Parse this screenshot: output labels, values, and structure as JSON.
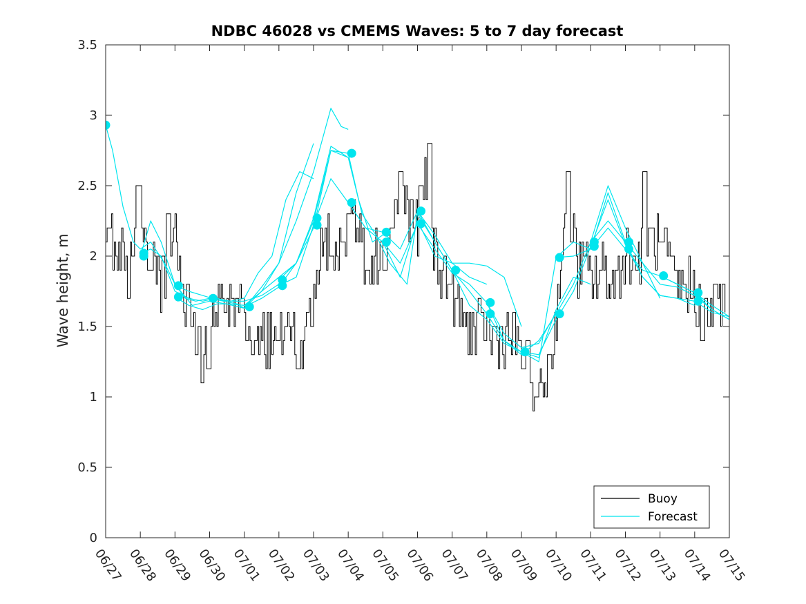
{
  "chart_data": {
    "type": "line",
    "title": "NDBC 46028 vs CMEMS Waves: 5 to 7 day forecast",
    "xlabel": "",
    "ylabel": "Wave height, m",
    "ylim": [
      0,
      3.5
    ],
    "yticks": [
      "0",
      "0.5",
      "1",
      "1.5",
      "2",
      "2.5",
      "3",
      "3.5"
    ],
    "xticks": [
      "06/27",
      "06/28",
      "06/29",
      "06/30",
      "07/01",
      "07/02",
      "07/03",
      "07/04",
      "07/05",
      "07/06",
      "07/07",
      "07/08",
      "07/09",
      "07/10",
      "07/11",
      "07/12",
      "07/13",
      "07/14",
      "07/15"
    ],
    "x_unit": "days since 06/27 00:00",
    "legend": {
      "position": "bottom-right",
      "entries": [
        "Buoy",
        "Forecast"
      ]
    },
    "colors": {
      "buoy": "#000000",
      "forecast": "#00e5ee",
      "axes": "#262626"
    },
    "buoy_anchors": [
      [
        0.0,
        2.2
      ],
      [
        0.1,
        2.35
      ],
      [
        0.2,
        2.05
      ],
      [
        0.35,
        2.1
      ],
      [
        0.5,
        2.0
      ],
      [
        0.65,
        1.85
      ],
      [
        0.8,
        2.05
      ],
      [
        0.95,
        2.45
      ],
      [
        1.05,
        2.3
      ],
      [
        1.15,
        2.1
      ],
      [
        1.3,
        1.9
      ],
      [
        1.5,
        1.8
      ],
      [
        1.7,
        1.85
      ],
      [
        1.85,
        2.15
      ],
      [
        2.0,
        2.15
      ],
      [
        2.1,
        2.05
      ],
      [
        2.25,
        1.7
      ],
      [
        2.4,
        1.65
      ],
      [
        2.55,
        1.45
      ],
      [
        2.7,
        1.35
      ],
      [
        2.85,
        1.28
      ],
      [
        3.0,
        1.4
      ],
      [
        3.1,
        1.55
      ],
      [
        3.25,
        1.6
      ],
      [
        3.4,
        1.65
      ],
      [
        3.55,
        1.6
      ],
      [
        3.7,
        1.55
      ],
      [
        3.85,
        1.6
      ],
      [
        4.0,
        1.45
      ],
      [
        4.2,
        1.4
      ],
      [
        4.4,
        1.5
      ],
      [
        4.6,
        1.4
      ],
      [
        4.8,
        1.45
      ],
      [
        5.0,
        1.4
      ],
      [
        5.2,
        1.35
      ],
      [
        5.4,
        1.45
      ],
      [
        5.55,
        1.35
      ],
      [
        5.65,
        1.25
      ],
      [
        5.75,
        1.4
      ],
      [
        5.85,
        1.55
      ],
      [
        6.0,
        1.75
      ],
      [
        6.15,
        1.95
      ],
      [
        6.3,
        2.05
      ],
      [
        6.5,
        2.15
      ],
      [
        6.7,
        2.05
      ],
      [
        6.85,
        2.1
      ],
      [
        7.0,
        2.05
      ],
      [
        7.1,
        2.35
      ],
      [
        7.2,
        2.25
      ],
      [
        7.35,
        2.1
      ],
      [
        7.5,
        2.0
      ],
      [
        7.7,
        1.95
      ],
      [
        7.9,
        2.0
      ],
      [
        8.1,
        2.05
      ],
      [
        8.3,
        2.3
      ],
      [
        8.5,
        2.4
      ],
      [
        8.7,
        2.35
      ],
      [
        8.85,
        2.25
      ],
      [
        9.0,
        2.2
      ],
      [
        9.1,
        2.4
      ],
      [
        9.2,
        2.55
      ],
      [
        9.3,
        2.35
      ],
      [
        9.4,
        2.1
      ],
      [
        9.6,
        1.95
      ],
      [
        9.8,
        1.85
      ],
      [
        10.0,
        1.75
      ],
      [
        10.15,
        1.6
      ],
      [
        10.3,
        1.55
      ],
      [
        10.5,
        1.5
      ],
      [
        10.7,
        1.45
      ],
      [
        10.9,
        1.5
      ],
      [
        11.1,
        1.45
      ],
      [
        11.3,
        1.4
      ],
      [
        11.5,
        1.45
      ],
      [
        11.7,
        1.4
      ],
      [
        11.9,
        1.35
      ],
      [
        12.1,
        1.25
      ],
      [
        12.3,
        1.15
      ],
      [
        12.45,
        1.05
      ],
      [
        12.55,
        1.05
      ],
      [
        12.7,
        1.15
      ],
      [
        12.85,
        1.3
      ],
      [
        13.0,
        1.6
      ],
      [
        13.1,
        1.9
      ],
      [
        13.2,
        2.2
      ],
      [
        13.3,
        2.35
      ],
      [
        13.4,
        2.3
      ],
      [
        13.5,
        2.1
      ],
      [
        13.6,
        1.95
      ],
      [
        13.8,
        1.9
      ],
      [
        14.0,
        1.85
      ],
      [
        14.2,
        1.85
      ],
      [
        14.4,
        1.9
      ],
      [
        14.6,
        1.8
      ],
      [
        14.8,
        1.9
      ],
      [
        15.0,
        2.05
      ],
      [
        15.2,
        1.95
      ],
      [
        15.4,
        2.0
      ],
      [
        15.6,
        2.15
      ],
      [
        15.8,
        2.1
      ],
      [
        16.0,
        2.05
      ],
      [
        16.2,
        1.95
      ],
      [
        16.4,
        1.8
      ],
      [
        16.6,
        1.75
      ],
      [
        16.8,
        1.8
      ],
      [
        17.0,
        1.75
      ],
      [
        17.2,
        1.65
      ],
      [
        17.4,
        1.6
      ],
      [
        17.6,
        1.65
      ],
      [
        17.8,
        1.7
      ],
      [
        17.9,
        1.6
      ]
    ],
    "buoy_peaks": [
      [
        0.9,
        2.5
      ],
      [
        1.8,
        2.3
      ],
      [
        2.95,
        1.2
      ],
      [
        5.55,
        1.2
      ],
      [
        7.0,
        2.3
      ],
      [
        8.5,
        2.6
      ],
      [
        9.35,
        2.8
      ],
      [
        12.4,
        1.0
      ],
      [
        13.35,
        2.6
      ],
      [
        15.55,
        2.6
      ],
      [
        17.2,
        1.4
      ]
    ],
    "forecast_series": [
      [
        [
          0.0,
          2.93
        ],
        [
          0.2,
          2.75
        ],
        [
          0.5,
          2.35
        ],
        [
          0.8,
          2.1
        ],
        [
          1.0,
          2.05
        ],
        [
          1.3,
          2.1
        ],
        [
          1.7,
          1.95
        ],
        [
          2.0,
          1.8
        ],
        [
          2.3,
          1.7
        ],
        [
          2.6,
          1.68
        ],
        [
          3.0,
          1.7
        ]
      ],
      [
        [
          1.0,
          2.02
        ],
        [
          1.3,
          2.05
        ],
        [
          1.6,
          2.0
        ],
        [
          2.0,
          1.75
        ],
        [
          2.4,
          1.7
        ],
        [
          2.8,
          1.68
        ],
        [
          3.2,
          1.7
        ],
        [
          3.6,
          1.68
        ],
        [
          4.0,
          1.68
        ],
        [
          4.5,
          1.72
        ],
        [
          5.0,
          1.8
        ]
      ],
      [
        [
          1.0,
          2.0
        ],
        [
          1.3,
          2.25
        ],
        [
          1.6,
          2.1
        ],
        [
          2.0,
          1.8
        ],
        [
          2.5,
          1.65
        ],
        [
          3.0,
          1.68
        ],
        [
          3.5,
          1.66
        ],
        [
          4.0,
          1.63
        ],
        [
          4.5,
          1.75
        ],
        [
          5.0,
          1.95
        ],
        [
          5.5,
          2.45
        ],
        [
          6.0,
          2.8
        ]
      ],
      [
        [
          2.0,
          1.79
        ],
        [
          2.4,
          1.75
        ],
        [
          2.8,
          1.72
        ],
        [
          3.2,
          1.69
        ],
        [
          3.6,
          1.68
        ],
        [
          4.0,
          1.7
        ],
        [
          4.4,
          1.88
        ],
        [
          4.8,
          2.0
        ],
        [
          5.2,
          2.4
        ],
        [
          5.6,
          2.6
        ],
        [
          6.0,
          2.55
        ]
      ],
      [
        [
          2.0,
          1.71
        ],
        [
          2.4,
          1.65
        ],
        [
          2.8,
          1.62
        ],
        [
          3.2,
          1.66
        ],
        [
          3.6,
          1.66
        ],
        [
          4.0,
          1.65
        ],
        [
          4.5,
          1.75
        ],
        [
          5.0,
          1.85
        ],
        [
          5.5,
          1.95
        ],
        [
          6.0,
          2.25
        ],
        [
          6.5,
          2.75
        ],
        [
          7.0,
          2.7
        ]
      ],
      [
        [
          3.0,
          1.7
        ],
        [
          3.4,
          1.68
        ],
        [
          3.8,
          1.66
        ],
        [
          4.0,
          1.63
        ],
        [
          4.5,
          1.78
        ],
        [
          5.0,
          1.95
        ],
        [
          5.5,
          2.25
        ],
        [
          6.0,
          2.6
        ],
        [
          6.5,
          3.05
        ],
        [
          6.8,
          2.92
        ],
        [
          7.0,
          2.9
        ]
      ],
      [
        [
          4.0,
          1.64
        ],
        [
          4.5,
          1.7
        ],
        [
          5.0,
          1.78
        ],
        [
          5.5,
          1.95
        ],
        [
          6.0,
          2.2
        ],
        [
          6.5,
          2.75
        ],
        [
          7.0,
          2.73
        ],
        [
          7.3,
          2.4
        ],
        [
          7.7,
          2.1
        ],
        [
          8.0,
          2.15
        ]
      ],
      [
        [
          5.0,
          1.83
        ],
        [
          5.5,
          1.95
        ],
        [
          6.0,
          2.27
        ],
        [
          6.5,
          2.78
        ],
        [
          7.0,
          2.7
        ],
        [
          7.4,
          2.3
        ],
        [
          7.8,
          2.15
        ],
        [
          8.2,
          1.95
        ],
        [
          8.7,
          1.8
        ],
        [
          9.0,
          2.3
        ],
        [
          9.5,
          2.1
        ],
        [
          10.0,
          1.9
        ]
      ],
      [
        [
          5.0,
          1.79
        ],
        [
          5.5,
          1.85
        ],
        [
          6.0,
          2.22
        ],
        [
          6.5,
          2.55
        ],
        [
          7.0,
          2.38
        ],
        [
          7.5,
          2.2
        ],
        [
          8.0,
          2.1
        ],
        [
          8.5,
          1.85
        ],
        [
          9.0,
          2.25
        ],
        [
          9.5,
          2.0
        ],
        [
          10.0,
          1.95
        ],
        [
          10.5,
          1.85
        ],
        [
          11.0,
          1.8
        ]
      ],
      [
        [
          7.0,
          2.38
        ],
        [
          7.5,
          2.2
        ],
        [
          8.0,
          2.17
        ],
        [
          8.5,
          2.05
        ],
        [
          9.0,
          2.32
        ],
        [
          9.5,
          2.15
        ],
        [
          10.0,
          1.95
        ],
        [
          10.5,
          1.95
        ],
        [
          11.0,
          1.93
        ],
        [
          11.5,
          1.85
        ],
        [
          12.0,
          1.5
        ]
      ],
      [
        [
          8.0,
          2.1
        ],
        [
          8.5,
          1.95
        ],
        [
          9.0,
          2.23
        ],
        [
          9.5,
          2.05
        ],
        [
          10.0,
          1.88
        ],
        [
          10.5,
          1.8
        ],
        [
          11.0,
          1.67
        ],
        [
          11.5,
          1.45
        ],
        [
          12.0,
          1.35
        ],
        [
          12.5,
          1.38
        ],
        [
          13.0,
          1.6
        ]
      ],
      [
        [
          9.0,
          2.32
        ],
        [
          9.5,
          2.1
        ],
        [
          10.0,
          1.9
        ],
        [
          10.5,
          1.75
        ],
        [
          11.0,
          1.59
        ],
        [
          11.5,
          1.4
        ],
        [
          12.0,
          1.32
        ],
        [
          12.5,
          1.28
        ],
        [
          13.0,
          1.62
        ],
        [
          13.5,
          1.85
        ],
        [
          14.0,
          1.8
        ]
      ],
      [
        [
          10.0,
          1.9
        ],
        [
          10.5,
          1.65
        ],
        [
          11.0,
          1.55
        ],
        [
          11.5,
          1.38
        ],
        [
          12.0,
          1.32
        ],
        [
          12.5,
          1.25
        ],
        [
          13.0,
          1.99
        ],
        [
          13.5,
          2.0
        ],
        [
          14.0,
          2.05
        ],
        [
          14.5,
          2.45
        ],
        [
          15.0,
          2.1
        ]
      ],
      [
        [
          11.0,
          1.67
        ],
        [
          11.5,
          1.4
        ],
        [
          12.0,
          1.3
        ],
        [
          12.5,
          1.4
        ],
        [
          13.0,
          1.59
        ],
        [
          13.5,
          1.8
        ],
        [
          14.0,
          2.1
        ],
        [
          14.5,
          2.5
        ],
        [
          15.0,
          2.2
        ],
        [
          15.5,
          1.95
        ],
        [
          16.0,
          1.7
        ]
      ],
      [
        [
          12.0,
          1.32
        ],
        [
          12.5,
          1.3
        ],
        [
          13.0,
          1.55
        ],
        [
          13.5,
          1.75
        ],
        [
          14.0,
          2.07
        ],
        [
          14.5,
          2.4
        ],
        [
          15.0,
          2.08
        ],
        [
          15.5,
          1.85
        ],
        [
          16.0,
          1.72
        ],
        [
          16.5,
          1.7
        ],
        [
          17.0,
          1.65
        ]
      ],
      [
        [
          13.0,
          1.99
        ],
        [
          13.5,
          2.1
        ],
        [
          14.0,
          2.05
        ],
        [
          14.5,
          2.2
        ],
        [
          15.0,
          2.05
        ],
        [
          15.5,
          1.9
        ],
        [
          16.0,
          1.86
        ],
        [
          16.5,
          1.8
        ],
        [
          17.0,
          1.74
        ],
        [
          17.5,
          1.65
        ],
        [
          18.0,
          1.57
        ]
      ],
      [
        [
          14.0,
          2.1
        ],
        [
          14.5,
          2.25
        ],
        [
          15.0,
          2.1
        ],
        [
          15.5,
          1.95
        ],
        [
          16.0,
          1.8
        ],
        [
          16.5,
          1.78
        ],
        [
          17.0,
          1.72
        ],
        [
          17.5,
          1.62
        ],
        [
          18.0,
          1.55
        ]
      ],
      [
        [
          15.0,
          2.1
        ],
        [
          15.5,
          1.85
        ],
        [
          16.0,
          1.72
        ],
        [
          16.5,
          1.7
        ],
        [
          17.0,
          1.68
        ],
        [
          17.5,
          1.6
        ],
        [
          18.0,
          1.57
        ]
      ],
      [
        [
          16.0,
          1.86
        ],
        [
          16.5,
          1.8
        ],
        [
          17.0,
          1.74
        ],
        [
          17.5,
          1.62
        ],
        [
          18.0,
          1.55
        ]
      ]
    ],
    "forecast_markers": [
      [
        0.0,
        2.93
      ],
      [
        1.1,
        2.02
      ],
      [
        1.1,
        2.0
      ],
      [
        2.1,
        1.79
      ],
      [
        2.1,
        1.71
      ],
      [
        3.1,
        1.7
      ],
      [
        4.15,
        1.64
      ],
      [
        5.1,
        1.83
      ],
      [
        5.1,
        1.79
      ],
      [
        6.1,
        2.27
      ],
      [
        6.1,
        2.22
      ],
      [
        7.1,
        2.73
      ],
      [
        7.1,
        2.38
      ],
      [
        8.1,
        2.17
      ],
      [
        8.1,
        2.1
      ],
      [
        9.1,
        2.32
      ],
      [
        9.1,
        2.23
      ],
      [
        10.1,
        1.9
      ],
      [
        11.1,
        1.67
      ],
      [
        11.1,
        1.59
      ],
      [
        12.1,
        1.32
      ],
      [
        13.1,
        1.99
      ],
      [
        13.1,
        1.59
      ],
      [
        14.1,
        2.1
      ],
      [
        14.1,
        2.07
      ],
      [
        15.1,
        2.1
      ],
      [
        15.1,
        2.05
      ],
      [
        16.1,
        1.86
      ],
      [
        17.1,
        1.74
      ],
      [
        17.1,
        1.68
      ]
    ]
  }
}
